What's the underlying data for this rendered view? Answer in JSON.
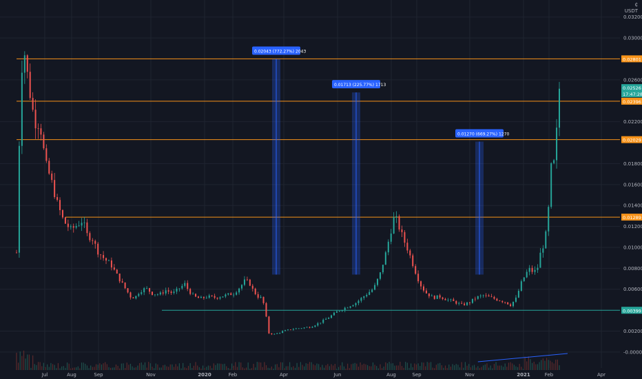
{
  "header": {
    "currency_symbol": "₵",
    "currency": "USDT"
  },
  "chart_data": {
    "type": "candlestick",
    "x_tick_labels": [
      "Jul",
      "Aug",
      "Sep",
      "Nov",
      "2020",
      "Feb",
      "Apr",
      "Jun",
      "Aug",
      "Sep",
      "Nov",
      "2021",
      "Feb",
      "Apr"
    ],
    "y_tick_labels": [
      "0.03200",
      "0.03000",
      "0.02600",
      "0.02200",
      "0.01800",
      "0.01600",
      "0.01400",
      "0.01200",
      "0.01000",
      "0.00800",
      "0.00600",
      "0.00200",
      "-0.00000"
    ],
    "ylim": [
      -0.0006,
      0.0333
    ],
    "current_price": {
      "value": "0.02526",
      "countdown": "17:47:28",
      "color": "#26a69a"
    },
    "horizontal_levels": [
      {
        "value": 0.02801,
        "label": "0.02801",
        "color": "#f7931a"
      },
      {
        "value": 0.02396,
        "label": "0.02396",
        "color": "#f7931a"
      },
      {
        "value": 0.02029,
        "label": "0.02029",
        "color": "#f7931a"
      },
      {
        "value": 0.01289,
        "label": "0.01289",
        "color": "#f7931a"
      },
      {
        "value": 0.00399,
        "label": "0.00399",
        "color": "#26a69a"
      }
    ],
    "measurements": [
      {
        "label": "0.02043 (772.27%) 2043",
        "top": 0.028,
        "bottom": 0.0074
      },
      {
        "label": "0.01713 (225.77%) 1713",
        "top": 0.0248,
        "bottom": 0.0074
      },
      {
        "label": "0.01270 (669.27%) 1270",
        "top": 0.0201,
        "bottom": 0.0074
      }
    ],
    "price_path": [
      [
        0,
        0.0095
      ],
      [
        5,
        0.027
      ],
      [
        9,
        0.0285
      ],
      [
        14,
        0.0252
      ],
      [
        20,
        0.022
      ],
      [
        26,
        0.0218
      ],
      [
        32,
        0.018
      ],
      [
        38,
        0.0165
      ],
      [
        45,
        0.0142
      ],
      [
        52,
        0.0125
      ],
      [
        60,
        0.0117
      ],
      [
        68,
        0.0122
      ],
      [
        73,
        0.0126
      ],
      [
        78,
        0.0112
      ],
      [
        84,
        0.0108
      ],
      [
        90,
        0.0096
      ],
      [
        97,
        0.0089
      ],
      [
        104,
        0.0084
      ],
      [
        112,
        0.0072
      ],
      [
        120,
        0.0061
      ],
      [
        126,
        0.0053
      ],
      [
        131,
        0.0052
      ],
      [
        136,
        0.0058
      ],
      [
        143,
        0.0061
      ],
      [
        150,
        0.0056
      ],
      [
        158,
        0.0055
      ],
      [
        165,
        0.0059
      ],
      [
        173,
        0.0056
      ],
      [
        180,
        0.0061
      ],
      [
        186,
        0.0065
      ],
      [
        190,
        0.0059
      ],
      [
        196,
        0.0053
      ],
      [
        203,
        0.0051
      ],
      [
        211,
        0.0053
      ],
      [
        220,
        0.0052
      ],
      [
        230,
        0.0054
      ],
      [
        240,
        0.0056
      ],
      [
        248,
        0.0063
      ],
      [
        253,
        0.0069
      ],
      [
        258,
        0.0065
      ],
      [
        262,
        0.0058
      ],
      [
        267,
        0.0053
      ],
      [
        272,
        0.0051
      ],
      [
        276,
        0.0033
      ],
      [
        279,
        0.0018
      ],
      [
        285,
        0.0017
      ],
      [
        295,
        0.002
      ],
      [
        305,
        0.0022
      ],
      [
        315,
        0.0023
      ],
      [
        325,
        0.0024
      ],
      [
        335,
        0.0028
      ],
      [
        345,
        0.0033
      ],
      [
        355,
        0.0039
      ],
      [
        365,
        0.0043
      ],
      [
        375,
        0.0047
      ],
      [
        385,
        0.0054
      ],
      [
        395,
        0.0061
      ],
      [
        402,
        0.0075
      ],
      [
        408,
        0.0094
      ],
      [
        413,
        0.0113
      ],
      [
        418,
        0.0131
      ],
      [
        423,
        0.0119
      ],
      [
        428,
        0.0107
      ],
      [
        433,
        0.0097
      ],
      [
        440,
        0.0079
      ],
      [
        446,
        0.0065
      ],
      [
        452,
        0.0057
      ],
      [
        460,
        0.0052
      ],
      [
        468,
        0.0053
      ],
      [
        476,
        0.005
      ],
      [
        484,
        0.0048
      ],
      [
        492,
        0.0045
      ],
      [
        500,
        0.0047
      ],
      [
        508,
        0.0052
      ],
      [
        516,
        0.0054
      ],
      [
        524,
        0.0052
      ],
      [
        532,
        0.005
      ],
      [
        540,
        0.0048
      ],
      [
        546,
        0.0045
      ],
      [
        552,
        0.0051
      ],
      [
        558,
        0.0066
      ],
      [
        563,
        0.0075
      ],
      [
        567,
        0.0079
      ],
      [
        572,
        0.0076
      ],
      [
        576,
        0.0081
      ],
      [
        580,
        0.0098
      ],
      [
        584,
        0.0105
      ],
      [
        587,
        0.0126
      ],
      [
        590,
        0.0157
      ],
      [
        592,
        0.0195
      ],
      [
        594,
        0.018
      ],
      [
        596,
        0.0195
      ],
      [
        598,
        0.0225
      ],
      [
        600,
        0.0252
      ]
    ]
  }
}
